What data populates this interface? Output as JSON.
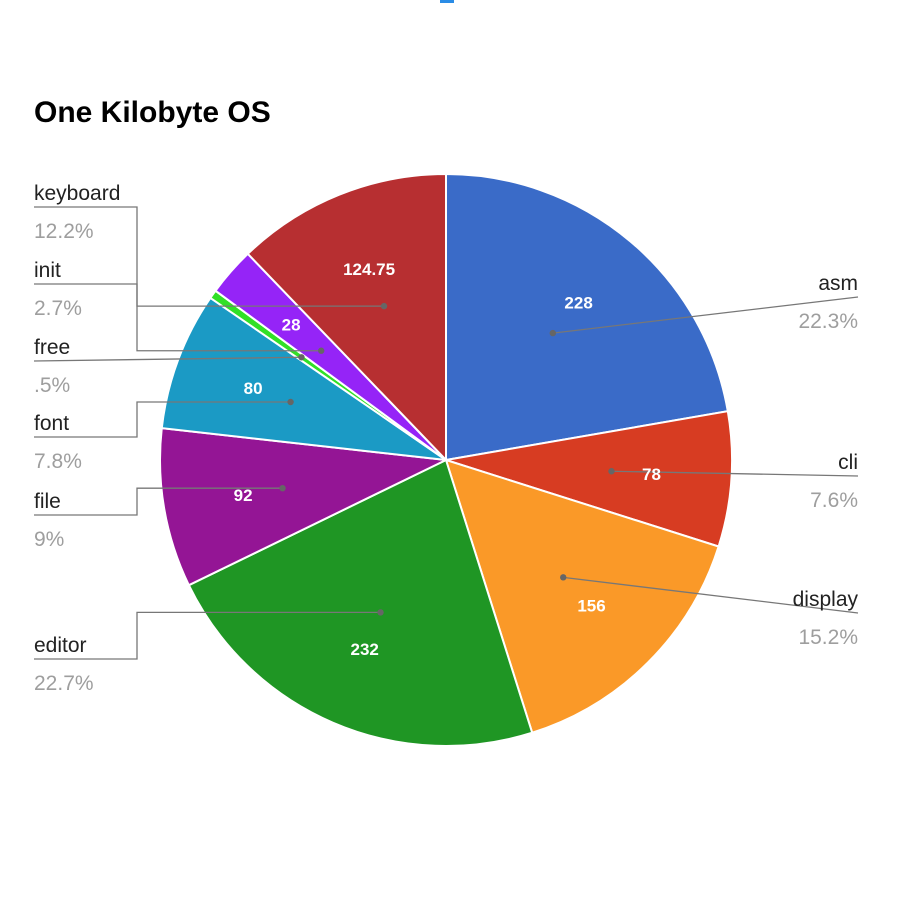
{
  "chart_data": {
    "type": "pie",
    "title": "One Kilobyte OS",
    "slices": [
      {
        "label": "asm",
        "value": 228,
        "display_value": "228",
        "percent_label": "22.3%",
        "color": "#3a6bc8"
      },
      {
        "label": "cli",
        "value": 78,
        "display_value": "78",
        "percent_label": "7.6%",
        "color": "#d73c22"
      },
      {
        "label": "display",
        "value": 156,
        "display_value": "156",
        "percent_label": "15.2%",
        "color": "#fa9928"
      },
      {
        "label": "editor",
        "value": 232,
        "display_value": "232",
        "percent_label": "22.7%",
        "color": "#1f9624"
      },
      {
        "label": "file",
        "value": 92,
        "display_value": "92",
        "percent_label": "9%",
        "color": "#941595"
      },
      {
        "label": "font",
        "value": 80,
        "display_value": "80",
        "percent_label": "7.8%",
        "color": "#1b9ac5"
      },
      {
        "label": "free",
        "value": 5,
        "display_value": "",
        "percent_label": ".5%",
        "color": "#32e027"
      },
      {
        "label": "init",
        "value": 28,
        "display_value": "28",
        "percent_label": "2.7%",
        "color": "#9524f7"
      },
      {
        "label": "keyboard",
        "value": 124.75,
        "display_value": "124.75",
        "percent_label": "12.2%",
        "color": "#b72f31"
      }
    ]
  }
}
